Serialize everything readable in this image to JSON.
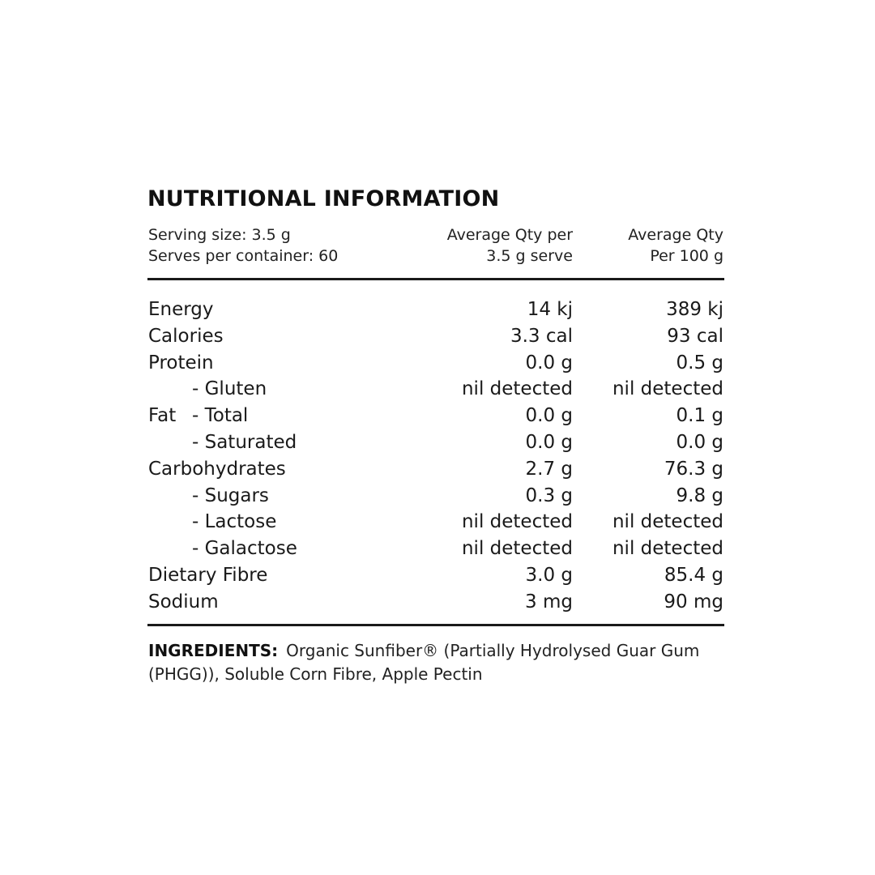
{
  "title": "NUTRITIONAL INFORMATION",
  "header": {
    "serving_size": "Serving size: 3.5 g",
    "serves_per_container": "Serves per container: 60",
    "col2_line1": "Average Qty per",
    "col2_line2": "3.5 g serve",
    "col3_line1": "Average Qty",
    "col3_line2": "Per 100 g"
  },
  "rows": [
    {
      "label": "Energy",
      "sub": "",
      "per_serve": "14 kj",
      "per_100g": "389 kj"
    },
    {
      "label": "Calories",
      "sub": "",
      "per_serve": "3.3 cal",
      "per_100g": "93 cal"
    },
    {
      "label": "Protein",
      "sub": "",
      "per_serve": "0.0 g",
      "per_100g": "0.5 g"
    },
    {
      "label": "",
      "sub": "- Gluten",
      "per_serve": "nil detected",
      "per_100g": "nil detected"
    },
    {
      "label": "Fat",
      "sub": "- Total",
      "per_serve": "0.0 g",
      "per_100g": "0.1 g"
    },
    {
      "label": "",
      "sub": "- Saturated",
      "per_serve": "0.0 g",
      "per_100g": "0.0 g"
    },
    {
      "label": "Carbohydrates",
      "sub": "",
      "per_serve": "2.7 g",
      "per_100g": "76.3 g"
    },
    {
      "label": "",
      "sub": "- Sugars",
      "per_serve": "0.3 g",
      "per_100g": "9.8 g"
    },
    {
      "label": "",
      "sub": "- Lactose",
      "per_serve": "nil detected",
      "per_100g": "nil detected"
    },
    {
      "label": "",
      "sub": "- Galactose",
      "per_serve": "nil detected",
      "per_100g": "nil detected"
    },
    {
      "label": "Dietary Fibre",
      "sub": "",
      "per_serve": "3.0 g",
      "per_100g": "85.4 g"
    },
    {
      "label": "Sodium",
      "sub": "",
      "per_serve": "3 mg",
      "per_100g": "90 mg"
    }
  ],
  "ingredients": {
    "label": "INGREDIENTS:",
    "text": "Organic Sunfiber® (Partially Hydrolysed Guar Gum (PHGG)), Soluble Corn Fibre, Apple Pectin"
  }
}
